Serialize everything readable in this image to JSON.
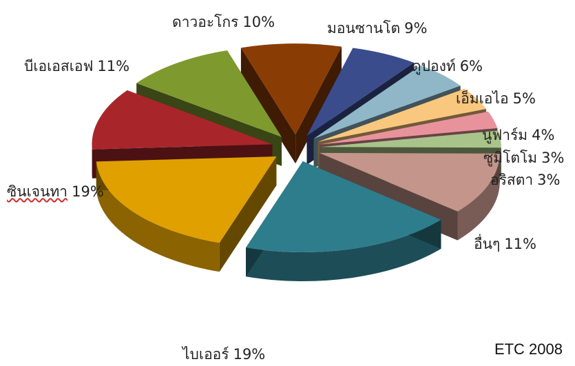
{
  "chart_data": {
    "type": "pie",
    "style": "3d-exploded",
    "legend": "none",
    "slices": [
      {
        "label": "ไบเออร์",
        "value": 19,
        "value_label": "19%",
        "color": "#2e7d8c"
      },
      {
        "label": "ซินเจนทา",
        "value": 19,
        "value_label": "19%",
        "color": "#e0a000"
      },
      {
        "label": "บีเอเอสเอฟ",
        "value": 11,
        "value_label": "11%",
        "color": "#a8262a"
      },
      {
        "label": "ดาวอะโกร",
        "value": 10,
        "value_label": "10%",
        "color": "#7e9a2e"
      },
      {
        "label": "มอนซานโต",
        "value": 9,
        "value_label": "9%",
        "color": "#8a3c05"
      },
      {
        "label": "ดูปองท์",
        "value": 6,
        "value_label": "6%",
        "color": "#3a4c8c"
      },
      {
        "label": "เอ็มเอไอ",
        "value": 5,
        "value_label": "5%",
        "color": "#8fb7c8"
      },
      {
        "label": "นูฟาร์ม",
        "value": 4,
        "value_label": "4%",
        "color": "#f9c77e"
      },
      {
        "label": "ซูมิโตโม",
        "value": 3,
        "value_label": "3%",
        "color": "#e8939c"
      },
      {
        "label": "อริสตา",
        "value": 3,
        "value_label": "3%",
        "color": "#a9c48a"
      },
      {
        "label": "อื่นๆ",
        "value": 11,
        "value_label": "11%",
        "color": "#c4958a"
      }
    ]
  },
  "source_note": "ETC 2008"
}
